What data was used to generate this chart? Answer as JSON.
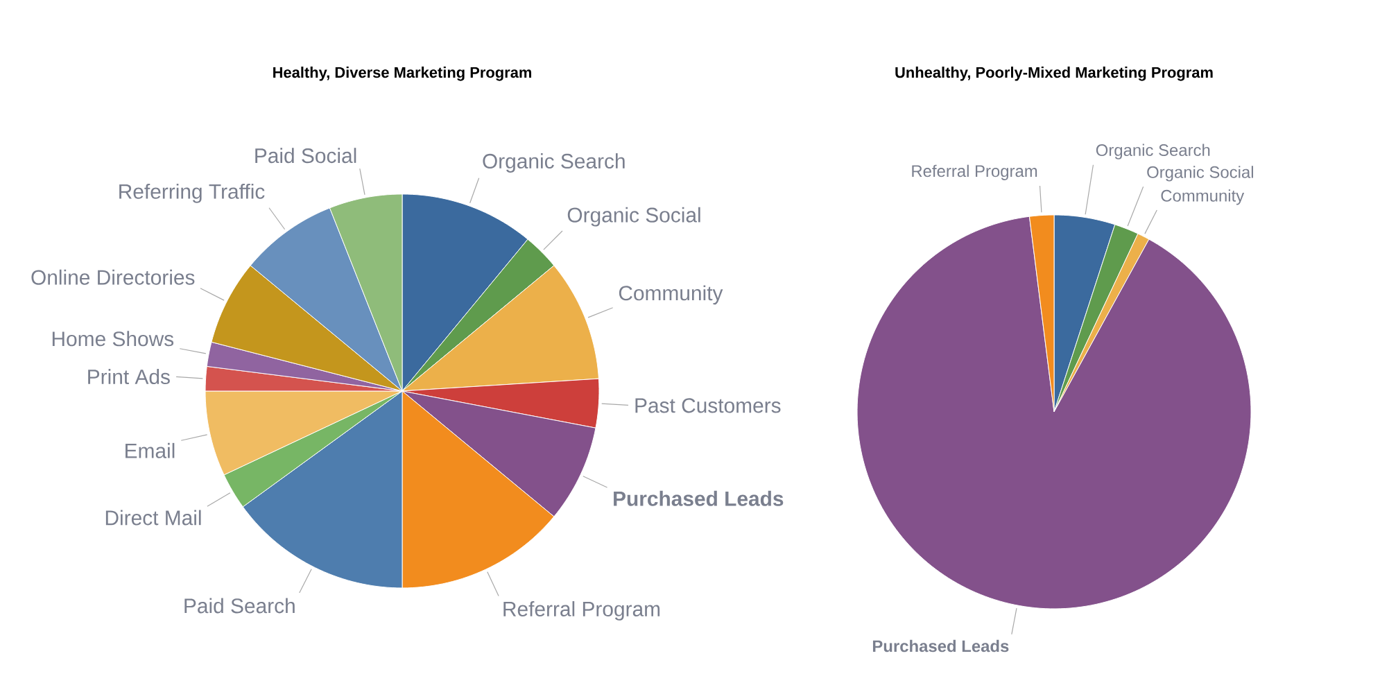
{
  "chart_data": [
    {
      "type": "pie",
      "title": "Healthy, Diverse Marketing Program",
      "categories": [
        "Organic Search",
        "Organic Social",
        "Community",
        "Past Customers",
        "**Purchased Leads**",
        "Referral Program",
        "Paid Search",
        "Direct Mail",
        "Email",
        "Print Ads",
        "Home Shows",
        "Online Directories",
        "Referring Traffic",
        "Paid Social"
      ],
      "values": [
        11,
        3,
        10,
        4,
        8,
        14,
        15,
        3,
        7,
        2,
        2,
        7,
        8,
        6
      ],
      "colors": [
        "#3b6a9e",
        "#5f9b4d",
        "#ecb04a",
        "#cd3f3b",
        "#83518b",
        "#f28c1e",
        "#4e7dae",
        "#77b665",
        "#f0bc62",
        "#d4534e",
        "#9064a0",
        "#c4961d",
        "#6890bd",
        "#8fbc7a"
      ]
    },
    {
      "type": "pie",
      "title": "Unhealthy, Poorly-Mixed Marketing Program",
      "categories": [
        "Organic Search",
        "Organic Social",
        "Community",
        "**Purchased Leads**",
        "Referral Program"
      ],
      "values": [
        5,
        2,
        1,
        90,
        2
      ],
      "colors": [
        "#3b6a9e",
        "#5f9b4d",
        "#ecb04a",
        "#83518b",
        "#f28c1e"
      ]
    }
  ]
}
